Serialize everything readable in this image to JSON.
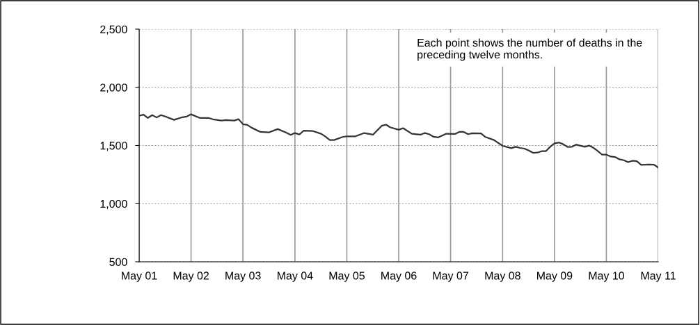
{
  "chart_data": {
    "type": "line",
    "x": [
      "2001-05",
      "2001-06",
      "2001-07",
      "2001-08",
      "2001-09",
      "2001-10",
      "2001-11",
      "2002-01",
      "2002-03",
      "2002-04",
      "2002-05",
      "2002-07",
      "2002-09",
      "2002-10",
      "2002-12",
      "2003-01",
      "2003-03",
      "2003-04",
      "2003-05",
      "2003-06",
      "2003-07",
      "2003-09",
      "2003-11",
      "2004-01",
      "2004-03",
      "2004-04",
      "2004-05",
      "2004-06",
      "2004-07",
      "2004-09",
      "2004-11",
      "2004-12",
      "2005-01",
      "2005-02",
      "2005-04",
      "2005-05",
      "2005-07",
      "2005-09",
      "2005-11",
      "2006-01",
      "2006-02",
      "2006-03",
      "2006-05",
      "2006-06",
      "2006-08",
      "2006-10",
      "2006-11",
      "2006-12",
      "2007-01",
      "2007-02",
      "2007-04",
      "2007-06",
      "2007-07",
      "2007-08",
      "2007-09",
      "2007-10",
      "2007-12",
      "2008-01",
      "2008-03",
      "2008-05",
      "2008-07",
      "2008-08",
      "2008-09",
      "2008-10",
      "2008-11",
      "2008-12",
      "2009-01",
      "2009-02",
      "2009-03",
      "2009-04",
      "2009-05",
      "2009-06",
      "2009-07",
      "2009-08",
      "2009-09",
      "2009-10",
      "2009-12",
      "2010-01",
      "2010-02",
      "2010-03",
      "2010-04",
      "2010-05",
      "2010-06",
      "2010-07",
      "2010-08",
      "2010-09",
      "2010-10",
      "2010-11",
      "2010-12",
      "2011-01",
      "2011-03",
      "2011-04",
      "2011-05"
    ],
    "series": [
      {
        "color": "#333333",
        "values": [
          1756,
          1765,
          1737,
          1761,
          1741,
          1761,
          1749,
          1720,
          1743,
          1749,
          1768,
          1737,
          1737,
          1725,
          1714,
          1719,
          1714,
          1726,
          1683,
          1677,
          1653,
          1617,
          1613,
          1641,
          1611,
          1591,
          1607,
          1595,
          1627,
          1625,
          1601,
          1577,
          1547,
          1547,
          1573,
          1579,
          1579,
          1607,
          1593,
          1669,
          1679,
          1657,
          1635,
          1649,
          1601,
          1593,
          1607,
          1597,
          1575,
          1569,
          1601,
          1599,
          1617,
          1617,
          1597,
          1605,
          1604,
          1573,
          1547,
          1497,
          1477,
          1489,
          1479,
          1473,
          1457,
          1437,
          1439,
          1451,
          1451,
          1489,
          1519,
          1525,
          1511,
          1487,
          1489,
          1507,
          1489,
          1499,
          1479,
          1453,
          1421,
          1421,
          1405,
          1401,
          1381,
          1373,
          1357,
          1369,
          1365,
          1333,
          1337,
          1335,
          1310
        ]
      }
    ],
    "xlim": [
      "2001-05",
      "2011-05"
    ],
    "xticks": [
      {
        "value": "2001-05",
        "label": "May 01"
      },
      {
        "value": "2002-05",
        "label": "May 02"
      },
      {
        "value": "2003-05",
        "label": "May 03"
      },
      {
        "value": "2004-05",
        "label": "May 04"
      },
      {
        "value": "2005-05",
        "label": "May 05"
      },
      {
        "value": "2006-05",
        "label": "May 06"
      },
      {
        "value": "2007-05",
        "label": "May 07"
      },
      {
        "value": "2008-05",
        "label": "May 08"
      },
      {
        "value": "2009-05",
        "label": "May 09"
      },
      {
        "value": "2010-05",
        "label": "May 10"
      },
      {
        "value": "2011-05",
        "label": "May 11"
      }
    ],
    "ylim": [
      500,
      2500
    ],
    "yticks": [
      {
        "value": 500,
        "label": "500"
      },
      {
        "value": 1000,
        "label": "1,000"
      },
      {
        "value": 1500,
        "label": "1,500"
      },
      {
        "value": 2000,
        "label": "2,000"
      },
      {
        "value": 2500,
        "label": "2,500"
      }
    ],
    "grid": true,
    "marker": "none",
    "line_style": "solid",
    "annotations": [
      "Each point shows the number of deaths in the preceding twelve months."
    ]
  }
}
